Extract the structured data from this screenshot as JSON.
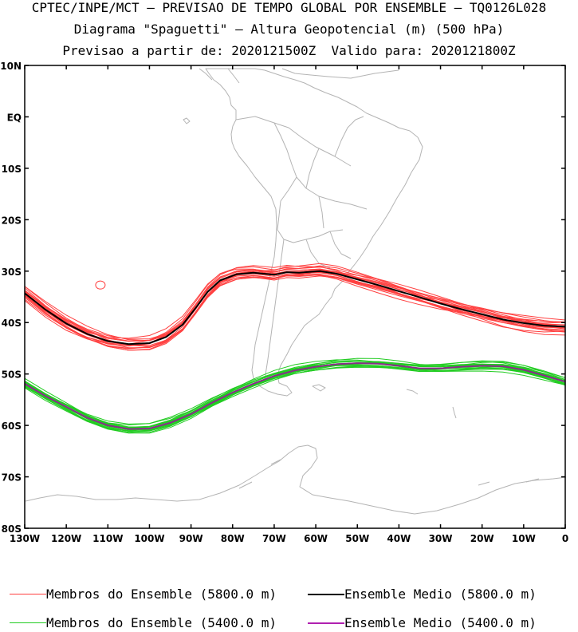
{
  "header": {
    "line1": "CPTEC/INPE/MCT — PREVISAO DE TEMPO GLOBAL POR ENSEMBLE — TQ0126L028",
    "line2": "Diagrama \"Spaguetti\" — Altura Geopotencial (m) (500 hPa)",
    "line3": "Previsao a partir de: 2020121500Z  Valido para: 2020121800Z"
  },
  "map": {
    "lon_range": [
      -130,
      0
    ],
    "lat_range": [
      -80,
      10
    ],
    "lat_ticks": [
      {
        "value": 10,
        "label": "10N"
      },
      {
        "value": 0,
        "label": "EQ"
      },
      {
        "value": -10,
        "label": "10S"
      },
      {
        "value": -20,
        "label": "20S"
      },
      {
        "value": -30,
        "label": "30S"
      },
      {
        "value": -40,
        "label": "40S"
      },
      {
        "value": -50,
        "label": "50S"
      },
      {
        "value": -60,
        "label": "60S"
      },
      {
        "value": -70,
        "label": "70S"
      },
      {
        "value": -80,
        "label": "80S"
      }
    ],
    "lon_ticks": [
      {
        "value": -130,
        "label": "130W"
      },
      {
        "value": -120,
        "label": "120W"
      },
      {
        "value": -110,
        "label": "110W"
      },
      {
        "value": -100,
        "label": "100W"
      },
      {
        "value": -90,
        "label": "90W"
      },
      {
        "value": -80,
        "label": "80W"
      },
      {
        "value": -70,
        "label": "70W"
      },
      {
        "value": -60,
        "label": "60W"
      },
      {
        "value": -50,
        "label": "50W"
      },
      {
        "value": -40,
        "label": "40W"
      },
      {
        "value": -30,
        "label": "30W"
      },
      {
        "value": -20,
        "label": "20W"
      },
      {
        "value": -10,
        "label": "10W"
      },
      {
        "value": 0,
        "label": "0"
      }
    ],
    "colors": {
      "coastline": "#b4b4b4",
      "members_5800": "#ff4040",
      "mean_5800": "#000000",
      "members_5400": "#22cc22",
      "mean_5400": "#8a2c8a"
    },
    "mean_5800": [
      [
        -130,
        -34.3
      ],
      [
        -125,
        -37.5
      ],
      [
        -120,
        -40.2
      ],
      [
        -115,
        -42.2
      ],
      [
        -110,
        -43.6
      ],
      [
        -105,
        -44.2
      ],
      [
        -100,
        -44.0
      ],
      [
        -96,
        -42.8
      ],
      [
        -92,
        -40.4
      ],
      [
        -89,
        -37.3
      ],
      [
        -86,
        -34.0
      ],
      [
        -83,
        -31.8
      ],
      [
        -79,
        -30.6
      ],
      [
        -75,
        -30.3
      ],
      [
        -70,
        -30.7
      ],
      [
        -67,
        -30.2
      ],
      [
        -64,
        -30.3
      ],
      [
        -59,
        -30.0
      ],
      [
        -55,
        -30.5
      ],
      [
        -50,
        -31.6
      ],
      [
        -45,
        -32.7
      ],
      [
        -40,
        -33.9
      ],
      [
        -35,
        -35.1
      ],
      [
        -30,
        -36.3
      ],
      [
        -25,
        -37.4
      ],
      [
        -20,
        -38.4
      ],
      [
        -15,
        -39.4
      ],
      [
        -10,
        -40.1
      ],
      [
        -5,
        -40.6
      ],
      [
        0,
        -40.8
      ]
    ],
    "mean_5400": [
      [
        -130,
        -51.9
      ],
      [
        -125,
        -54.3
      ],
      [
        -120,
        -56.4
      ],
      [
        -115,
        -58.5
      ],
      [
        -110,
        -60.0
      ],
      [
        -105,
        -60.7
      ],
      [
        -100,
        -60.6
      ],
      [
        -95,
        -59.5
      ],
      [
        -90,
        -57.8
      ],
      [
        -85,
        -55.6
      ],
      [
        -80,
        -53.6
      ],
      [
        -75,
        -51.9
      ],
      [
        -70,
        -50.4
      ],
      [
        -65,
        -49.3
      ],
      [
        -60,
        -48.6
      ],
      [
        -55,
        -48.1
      ],
      [
        -50,
        -47.9
      ],
      [
        -45,
        -48.0
      ],
      [
        -40,
        -48.4
      ],
      [
        -35,
        -48.9
      ],
      [
        -30,
        -48.9
      ],
      [
        -25,
        -48.6
      ],
      [
        -20,
        -48.4
      ],
      [
        -15,
        -48.5
      ],
      [
        -10,
        -49.2
      ],
      [
        -5,
        -50.3
      ],
      [
        0,
        -51.5
      ]
    ]
  },
  "legend": {
    "members_5800": "Membros do Ensemble (5800.0 m)",
    "mean_5800": "Ensemble Medio (5800.0 m)",
    "members_5400": "Membros do Ensemble (5400.0 m)",
    "mean_5400": "Ensemble Medio (5400.0 m)"
  }
}
